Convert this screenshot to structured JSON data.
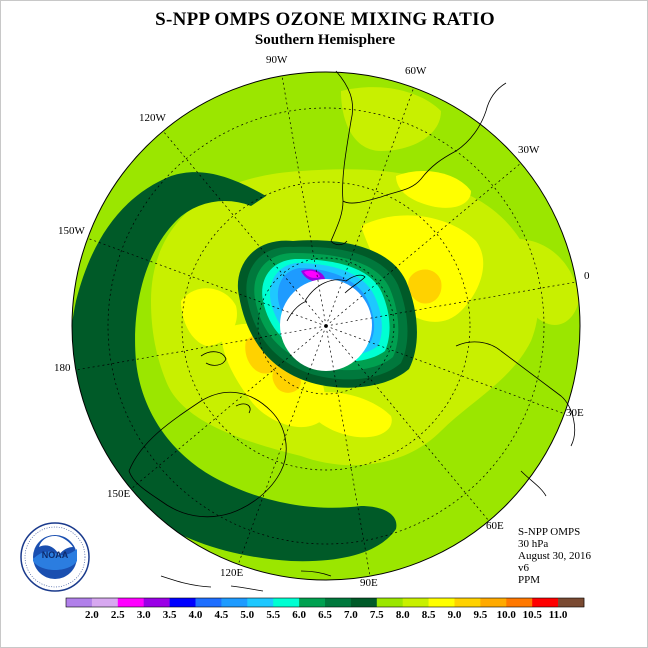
{
  "header": {
    "title": "S-NPP OMPS OZONE MIXING RATIO",
    "subtitle": "Southern Hemisphere"
  },
  "map": {
    "projection": "south-polar stereographic",
    "longitude_labels": [
      "90W",
      "60W",
      "30W",
      "0",
      "30E",
      "60E",
      "90E",
      "120E",
      "150E",
      "180",
      "150W",
      "120W"
    ],
    "polar_night_no_data": true
  },
  "info": {
    "instrument": "S-NPP OMPS",
    "level": "30 hPa",
    "date": "August 30, 2016",
    "version": "v6",
    "units": "PPM"
  },
  "colorbar": {
    "ticks": [
      "2.0",
      "2.5",
      "3.0",
      "3.5",
      "4.0",
      "4.5",
      "5.0",
      "5.5",
      "6.0",
      "6.5",
      "7.0",
      "7.5",
      "8.0",
      "8.5",
      "9.0",
      "9.5",
      "10.0",
      "10.5",
      "11.0"
    ],
    "colors": [
      "#b180ea",
      "#d7a8f0",
      "#ff00ff",
      "#9a00e6",
      "#0000ff",
      "#1e6eff",
      "#1e9bff",
      "#1ec8ff",
      "#00ffd2",
      "#00a050",
      "#00783c",
      "#005a28",
      "#9be600",
      "#c8f000",
      "#ffff00",
      "#ffd200",
      "#ffaa00",
      "#ff7800",
      "#ff0000",
      "#7a4a32"
    ]
  },
  "logo": {
    "text": "NOAA"
  },
  "colors": {
    "background_field": "#9be600",
    "yellow_green": "#c8f000",
    "yellow": "#ffff00",
    "orange": "#ffd200",
    "dark_orange": "#ffaa00",
    "dark_green": "#005a28",
    "mid_green": "#00783c",
    "green": "#00a050",
    "cyan": "#00ffd2",
    "light_blue": "#1ec8ff",
    "blue": "#1e9bff",
    "deep_blue": "#0000ff",
    "purple": "#9a00e6",
    "magenta": "#ff00ff"
  }
}
